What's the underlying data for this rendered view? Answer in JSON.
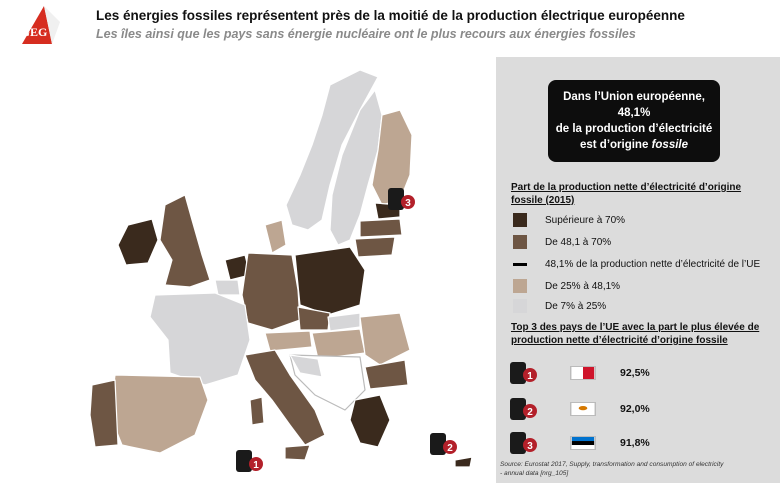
{
  "header": {
    "logo_text": "GEG",
    "title": "Les énergies fossiles représentent près de la moitié de la production électrique européenne",
    "subtitle": "Les îles ainsi que les pays sans énergie nucléaire ont le plus recours aux énergies fossiles"
  },
  "callout": {
    "line1": "Dans l’Union européenne,",
    "line2": "48,1%",
    "line3": "de la production d’électricité",
    "line4_prefix": "est d’origine ",
    "line4_emph": "fossile"
  },
  "legend": {
    "title_line1": "Part de la production nette d’électricité d’origine",
    "title_line2": "fossile (2015)",
    "items": [
      {
        "label": "Supérieure à 70%",
        "color": "#3a2a1d",
        "type": "swatch"
      },
      {
        "label": "De 48,1 à 70%",
        "color": "#6e5644",
        "type": "swatch"
      },
      {
        "label": "48,1% de la production nette d’électricité de l’UE",
        "color": "#000000",
        "type": "line"
      },
      {
        "label": "De 25% à 48,1%",
        "color": "#bda692",
        "type": "swatch"
      },
      {
        "label": "De 7% à 25%",
        "color": "#d6d6d8",
        "type": "swatch"
      }
    ]
  },
  "top3": {
    "title_line1": "Top 3 des pays de l’UE avec la part le plus élevée de",
    "title_line2": "production nette d’électricité d’origine fossile",
    "items": [
      {
        "rank": "1",
        "value": "92,5%",
        "flag": "malta-flag"
      },
      {
        "rank": "2",
        "value": "92,0%",
        "flag": "cyprus-flag"
      },
      {
        "rank": "3",
        "value": "91,8%",
        "flag": "estonia-flag"
      }
    ]
  },
  "map_markers": [
    {
      "rank": "1",
      "country": "Malte"
    },
    {
      "rank": "2",
      "country": "Chypre"
    },
    {
      "rank": "3",
      "country": "Estonie"
    }
  ],
  "source": {
    "line1": "Source: Eurostat 2017, Supply, transformation and consumption of electricity",
    "line2": "- annual data [nrg_105]"
  },
  "colors": {
    "dark": "#3a2a1d",
    "medium": "#6e5644",
    "light": "#bda692",
    "pale": "#d6d6d8",
    "nonEU": "#ffffff",
    "logo_red": "#d62d20",
    "marker_red": "#b3202a"
  }
}
